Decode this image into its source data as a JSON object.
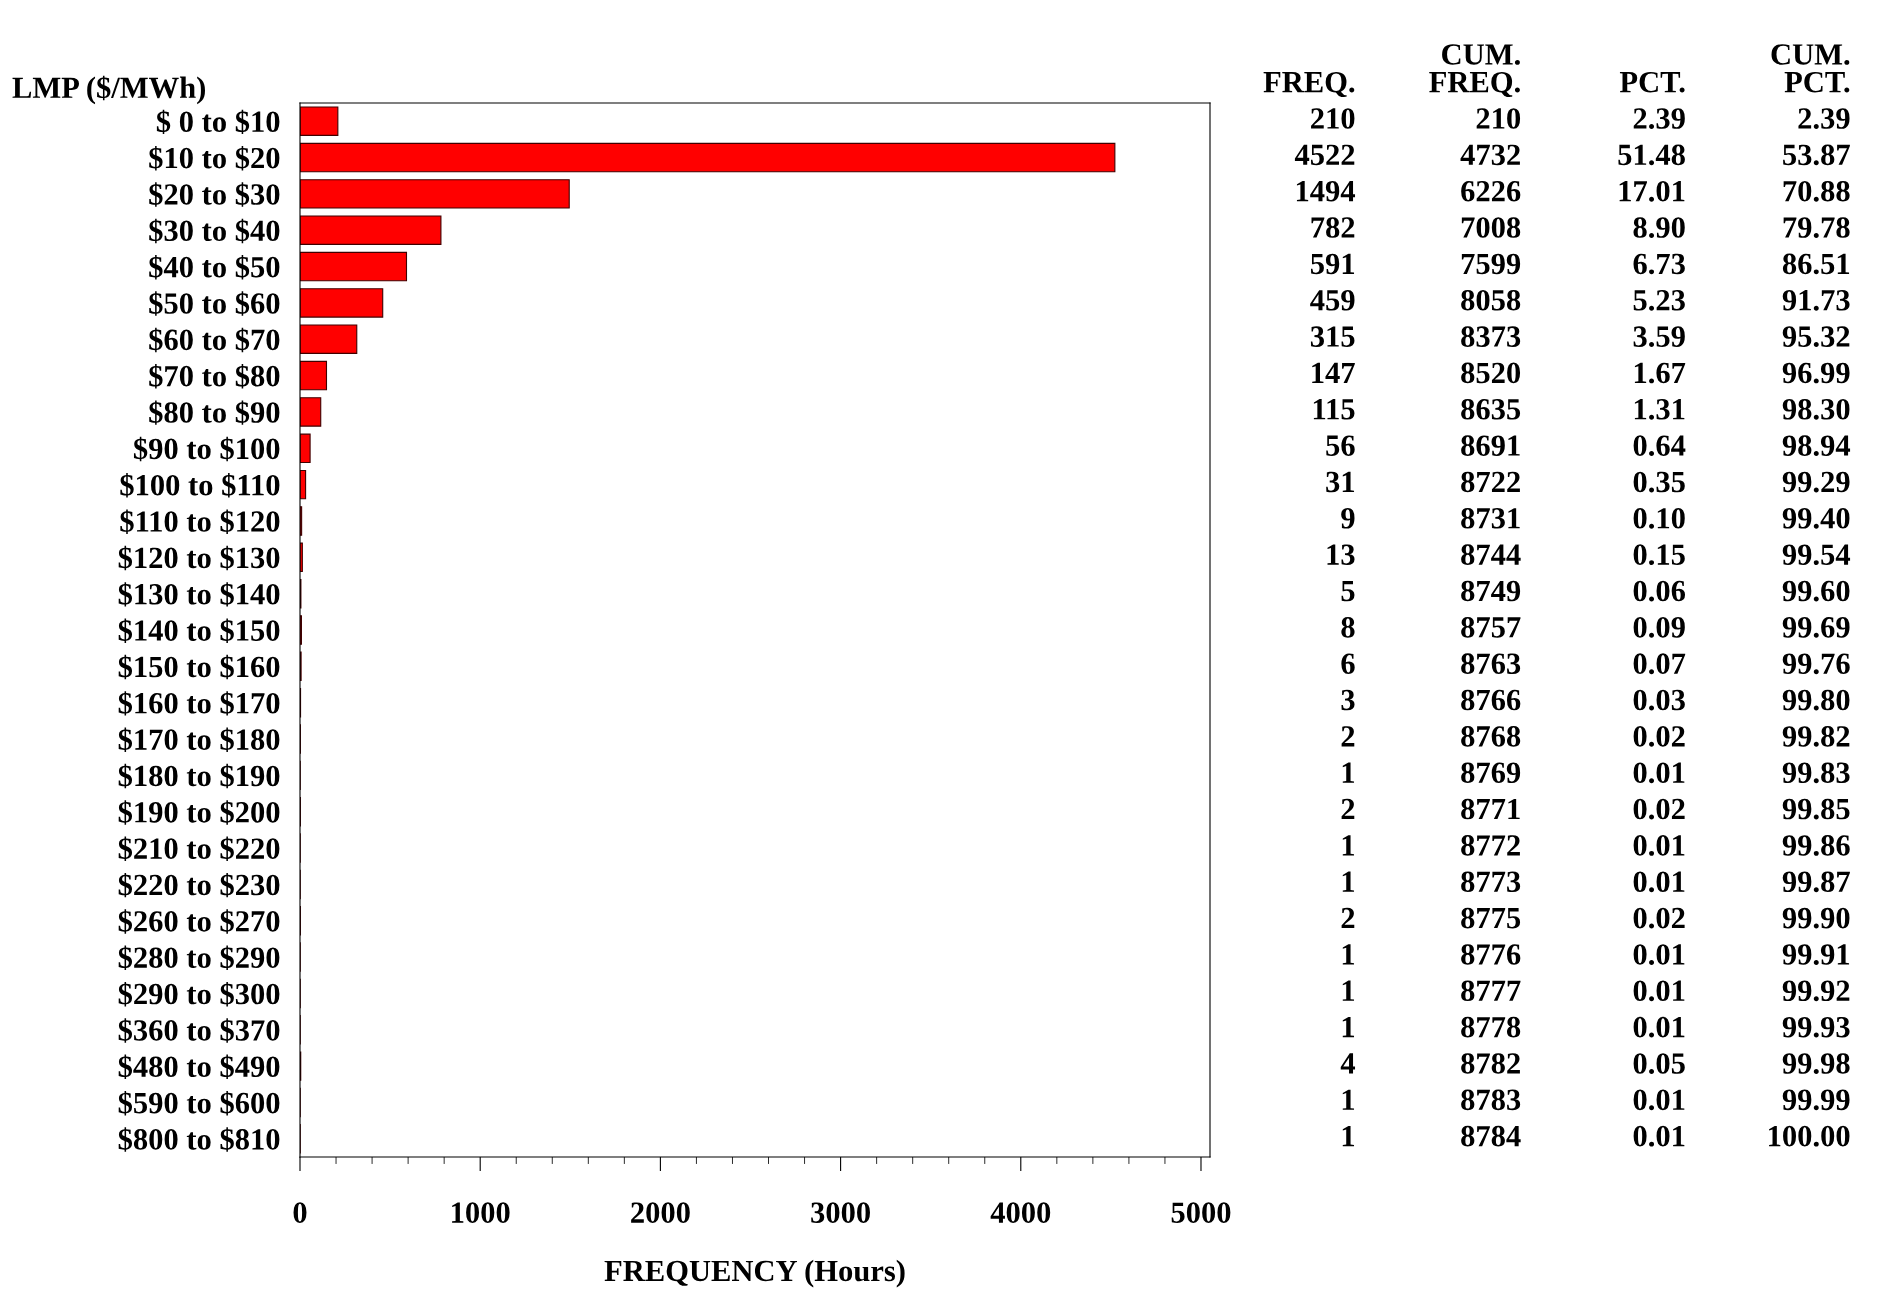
{
  "chart_data": {
    "type": "bar",
    "orientation": "horizontal",
    "ylabel": "LMP ($/MWh)",
    "xlabel": "FREQUENCY (Hours)",
    "categories": [
      "$ 0 to $10",
      "$10 to $20",
      "$20 to $30",
      "$30 to $40",
      "$40 to $50",
      "$50 to $60",
      "$60 to $70",
      "$70 to $80",
      "$80 to $90",
      "$90 to $100",
      "$100 to $110",
      "$110 to $120",
      "$120 to $130",
      "$130 to $140",
      "$140 to $150",
      "$150 to $160",
      "$160 to $170",
      "$170 to $180",
      "$180 to $190",
      "$190 to $200",
      "$210 to $220",
      "$220 to $230",
      "$260 to $270",
      "$280 to $290",
      "$290 to $300",
      "$360 to $370",
      "$480 to $490",
      "$590 to $600",
      "$800 to $810"
    ],
    "values": [
      210,
      4522,
      1494,
      782,
      591,
      459,
      315,
      147,
      115,
      56,
      31,
      9,
      13,
      5,
      8,
      6,
      3,
      2,
      1,
      2,
      1,
      1,
      2,
      1,
      1,
      1,
      4,
      1,
      1
    ],
    "color": "#ff0000",
    "xlim": [
      0,
      5050
    ],
    "xticks": [
      0,
      1000,
      2000,
      3000,
      4000,
      5000
    ],
    "grid": false,
    "data_labels": true,
    "annotations": [
      "FREQ.",
      "CUM.\nFREQ.",
      "PCT.",
      "CUM.\nPCT.",
      "210",
      "4732",
      "6226",
      "7008",
      "7599",
      "8058",
      "8373",
      "8520",
      "8635",
      "8691",
      "8722",
      "8731",
      "8744",
      "8749",
      "8757",
      "8763",
      "8766",
      "8768",
      "8769",
      "8771",
      "8772",
      "8773",
      "8775",
      "8776",
      "8777",
      "8778",
      "8782",
      "8783",
      "8784",
      "2.39",
      "51.48",
      "17.01",
      "8.90",
      "6.73",
      "5.23",
      "3.59",
      "1.67",
      "1.31",
      "0.64",
      "0.35",
      "0.10",
      "0.15",
      "0.06",
      "0.09",
      "0.07",
      "0.03",
      "0.02",
      "0.01",
      "0.02",
      "0.01",
      "0.01",
      "0.02",
      "0.01",
      "0.01",
      "0.01",
      "0.05",
      "0.01",
      "0.01",
      "2.39",
      "53.87",
      "70.88",
      "79.78",
      "86.51",
      "91.73",
      "95.32",
      "96.99",
      "98.30",
      "98.94",
      "99.29",
      "99.40",
      "99.54",
      "99.60",
      "99.69",
      "99.76",
      "99.80",
      "99.82",
      "99.83",
      "99.85",
      "99.86",
      "99.87",
      "99.90",
      "99.91",
      "99.92",
      "99.93",
      "99.98",
      "99.99",
      "100.00"
    ]
  }
}
